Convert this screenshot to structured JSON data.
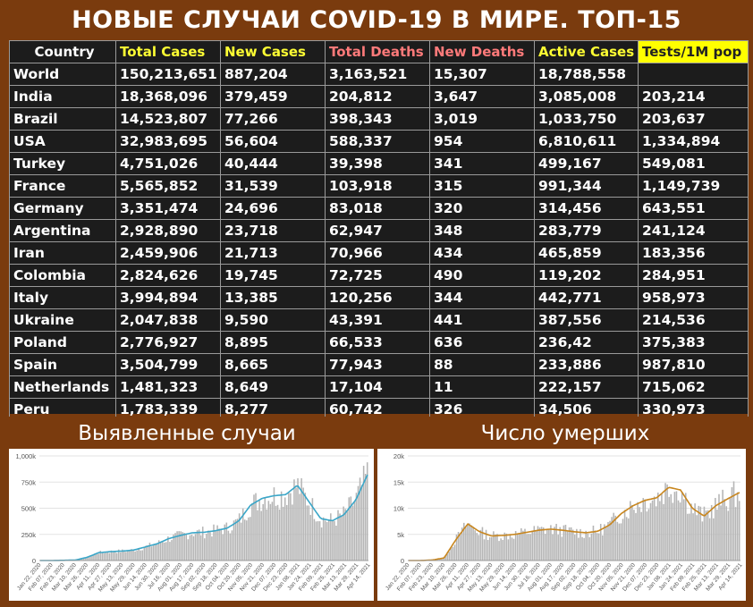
{
  "title": "НОВЫЕ СЛУЧАИ COVID-19 В МИРЕ. ТОП-15",
  "table": {
    "headers": [
      "Country",
      "Total Cases",
      "New Cases",
      "Total Deaths",
      "New Deaths",
      "Active Cases",
      "Tests/1M pop"
    ],
    "rows": [
      [
        "World",
        "150,213,651",
        "887,204",
        "3,163,521",
        "15,307",
        "18,788,558",
        ""
      ],
      [
        "India",
        "18,368,096",
        "379,459",
        "204,812",
        "3,647",
        "3,085,008",
        "203,214"
      ],
      [
        "Brazil",
        "14,523,807",
        "77,266",
        "398,343",
        "3,019",
        "1,033,750",
        "203,637"
      ],
      [
        "USA",
        "32,983,695",
        "56,604",
        "588,337",
        "954",
        "6,810,611",
        "1,334,894"
      ],
      [
        "Turkey",
        "4,751,026",
        "40,444",
        "39,398",
        "341",
        "499,167",
        "549,081"
      ],
      [
        "France",
        "5,565,852",
        "31,539",
        "103,918",
        "315",
        "991,344",
        "1,149,739"
      ],
      [
        "Germany",
        "3,351,474",
        "24,696",
        "83,018",
        "320",
        "314,456",
        "643,551"
      ],
      [
        "Argentina",
        "2,928,890",
        "23,718",
        "62,947",
        "348",
        "283,779",
        "241,124"
      ],
      [
        "Iran",
        "2,459,906",
        "21,713",
        "70,966",
        "434",
        "465,859",
        "183,356"
      ],
      [
        "Colombia",
        "2,824,626",
        "19,745",
        "72,725",
        "490",
        "119,202",
        "284,951"
      ],
      [
        "Italy",
        "3,994,894",
        "13,385",
        "120,256",
        "344",
        "442,771",
        "958,973"
      ],
      [
        "Ukraine",
        "2,047,838",
        "9,590",
        "43,391",
        "441",
        "387,556",
        "214,536"
      ],
      [
        "Poland",
        "2,776,927",
        "8,895",
        "66,533",
        "636",
        "236,42",
        "375,383"
      ],
      [
        "Spain",
        "3,504,799",
        "8,665",
        "77,943",
        "88",
        "233,886",
        "987,810"
      ],
      [
        "Netherlands",
        "1,481,323",
        "8,649",
        "17,104",
        "11",
        "222,157",
        "715,062"
      ],
      [
        "Peru",
        "1,783,339",
        "8,277",
        "60,742",
        "326",
        "34,506",
        "330,973"
      ]
    ]
  },
  "charts": {
    "cases": {
      "header": "Выявленные случаи",
      "line_color": "#3aa6c8",
      "bar_color": "#b5b5b5",
      "chart_data": {
        "type": "bar",
        "y_ticks": [
          "0",
          "250k",
          "500k",
          "750k",
          "1,000k"
        ],
        "ylim": [
          0,
          1000000
        ],
        "x_ticks": [
          "Jan 22, 2020",
          "Feb 07, 2020",
          "Feb 23, 2020",
          "Mar 10, 2020",
          "Mar 26, 2020",
          "Apr 11, 2020",
          "Apr 27, 2020",
          "May 13, 2020",
          "May 29, 2020",
          "Jun 14, 2020",
          "Jun 30, 2020",
          "Jul 16, 2020",
          "Aug 01, 2020",
          "Aug 17, 2020",
          "Sep 02, 2020",
          "Sep 18, 2020",
          "Oct 04, 2020",
          "Oct 20, 2020",
          "Nov 05, 2020",
          "Nov 21, 2020",
          "Dec 07, 2020",
          "Dec 23, 2020",
          "Jan 08, 2021",
          "Jan 24, 2021",
          "Feb 09, 2021",
          "Feb 25, 2021",
          "Mar 13, 2021",
          "Mar 29, 2021",
          "Apr 14, 2021"
        ],
        "values": [
          0,
          0,
          2000,
          4000,
          30000,
          75000,
          85000,
          90000,
          100000,
          130000,
          160000,
          210000,
          240000,
          265000,
          270000,
          285000,
          310000,
          380000,
          530000,
          595000,
          620000,
          630000,
          720000,
          560000,
          400000,
          380000,
          440000,
          580000,
          820000
        ]
      }
    },
    "deaths": {
      "header": "Число умерших",
      "line_color": "#c8861e",
      "bar_color": "#b5b5b5",
      "chart_data": {
        "type": "bar",
        "y_ticks": [
          "0",
          "5k",
          "10k",
          "15k",
          "20k"
        ],
        "ylim": [
          0,
          20000
        ],
        "x_ticks": [
          "Jan 22, 2020",
          "Feb 07, 2020",
          "Feb 23, 2020",
          "Mar 10, 2020",
          "Mar 26, 2020",
          "Apr 11, 2020",
          "Apr 27, 2020",
          "May 13, 2020",
          "May 29, 2020",
          "Jun 14, 2020",
          "Jun 30, 2020",
          "Jul 16, 2020",
          "Aug 01, 2020",
          "Aug 17, 2020",
          "Sep 02, 2020",
          "Sep 18, 2020",
          "Oct 04, 2020",
          "Oct 20, 2020",
          "Nov 05, 2020",
          "Nov 21, 2020",
          "Dec 07, 2020",
          "Dec 23, 2020",
          "Jan 08, 2021",
          "Jan 24, 2021",
          "Feb 09, 2021",
          "Feb 25, 2021",
          "Mar 13, 2021",
          "Mar 29, 2021",
          "Apr 14, 2021"
        ],
        "values": [
          0,
          0,
          100,
          500,
          4000,
          7000,
          5500,
          4700,
          4800,
          5000,
          5400,
          5800,
          6000,
          5800,
          5500,
          5300,
          5600,
          6800,
          9000,
          10500,
          11500,
          12000,
          14000,
          13500,
          10000,
          8500,
          10500,
          11800,
          13000
        ]
      }
    }
  }
}
